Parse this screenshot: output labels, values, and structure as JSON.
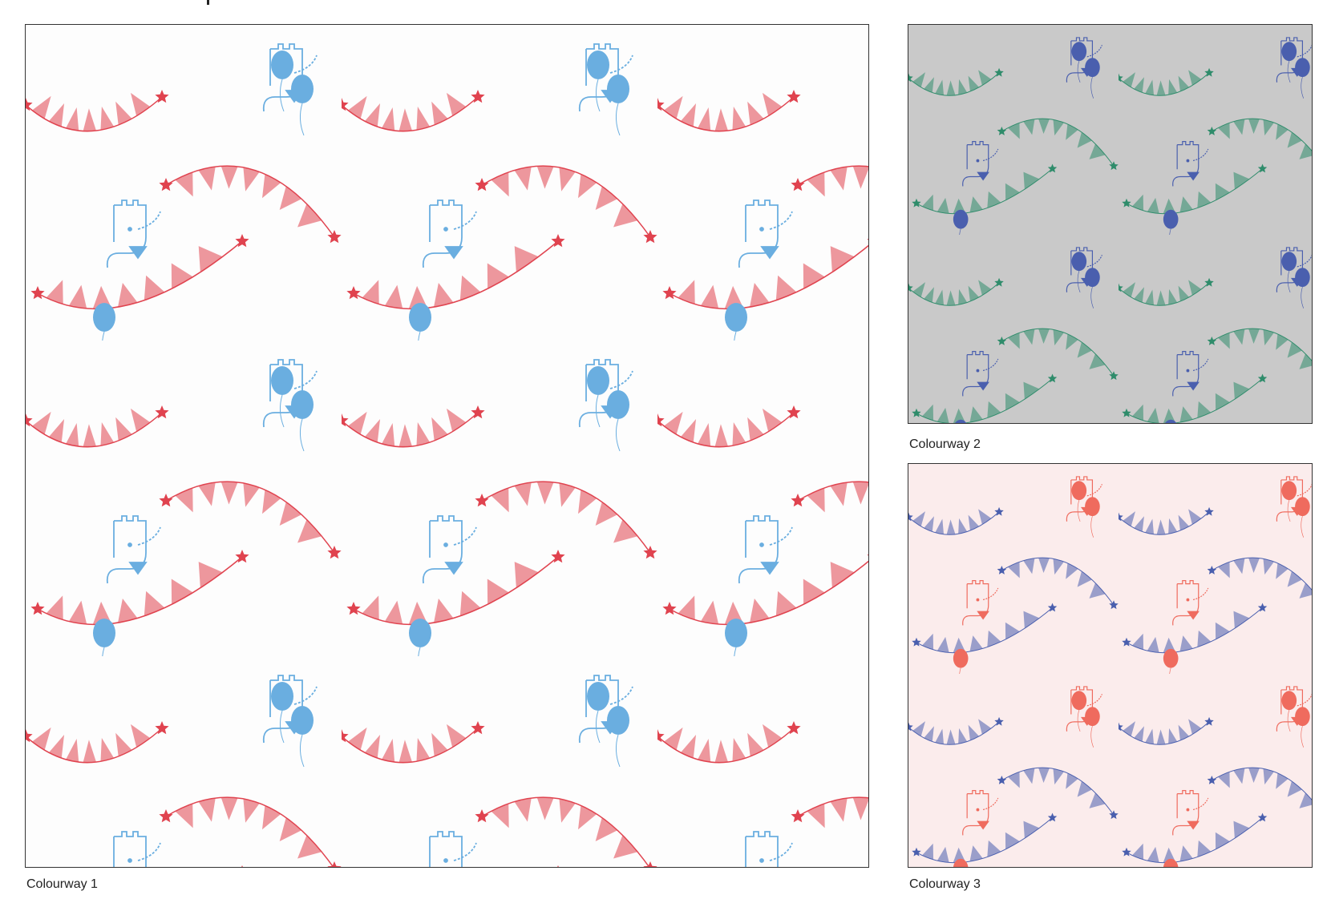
{
  "panels": [
    {
      "label": "Colourway 1",
      "colors": {
        "background": "#fdfdfd",
        "bunting": "#e0434f",
        "motif": "#6aaee0"
      }
    },
    {
      "label": "Colourway 2",
      "colors": {
        "background": "#c9c9c9",
        "bunting": "#2f8c6b",
        "motif": "#4a5fae"
      }
    },
    {
      "label": "Colourway 3",
      "colors": {
        "background": "#fbecec",
        "bunting": "#4a5fae",
        "motif": "#ef6b5e"
      }
    }
  ],
  "motifs": [
    "bunting-garland",
    "star",
    "balloon",
    "elephant"
  ]
}
